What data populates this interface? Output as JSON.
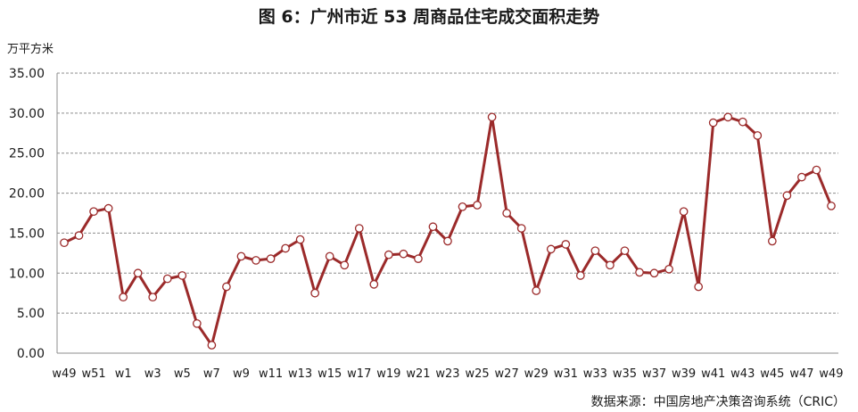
{
  "title": "图 6：广州市近 53 周商品住宅成交面积走势",
  "unit_label": "万平方米",
  "source": "数据来源：中国房地产决策咨询系统（CRIC）",
  "chart_data": {
    "type": "line",
    "ylim": [
      0,
      35
    ],
    "yticks": [
      "0.00",
      "5.00",
      "10.00",
      "15.00",
      "20.00",
      "25.00",
      "30.00",
      "35.00"
    ],
    "grid": true,
    "categories": [
      "w49",
      "w50",
      "w51",
      "w52",
      "w1",
      "w2",
      "w3",
      "w4",
      "w5",
      "w6",
      "w7",
      "w8",
      "w9",
      "w10",
      "w11",
      "w12",
      "w13",
      "w14",
      "w15",
      "w16",
      "w17",
      "w18",
      "w19",
      "w20",
      "w21",
      "w22",
      "w23",
      "w24",
      "w25",
      "w26",
      "w27",
      "w28",
      "w29",
      "w30",
      "w31",
      "w32",
      "w33",
      "w34",
      "w35",
      "w36",
      "w37",
      "w38",
      "w39",
      "w40",
      "w41",
      "w42",
      "w43",
      "w44",
      "w45",
      "w46",
      "w47",
      "w48",
      "w49"
    ],
    "xtick_labels": [
      "w49",
      "w51",
      "w1",
      "w3",
      "w5",
      "w7",
      "w9",
      "w11",
      "w13",
      "w15",
      "w17",
      "w19",
      "w21",
      "w23",
      "w25",
      "w27",
      "w29",
      "w31",
      "w33",
      "w35",
      "w37",
      "w39",
      "w41",
      "w43",
      "w45",
      "w47",
      "w49"
    ],
    "series": [
      {
        "color": "#9b2a2a",
        "values": [
          13.8,
          14.7,
          17.7,
          18.1,
          7.0,
          10.0,
          7.0,
          9.3,
          9.7,
          3.7,
          1.0,
          8.3,
          12.1,
          11.6,
          11.8,
          13.1,
          14.2,
          7.5,
          12.1,
          11.0,
          15.6,
          8.6,
          12.3,
          12.4,
          11.8,
          15.8,
          14.0,
          18.3,
          18.5,
          29.5,
          17.5,
          15.6,
          7.8,
          13.0,
          13.6,
          9.7,
          12.8,
          11.0,
          12.8,
          10.1,
          10.0,
          10.5,
          17.7,
          8.3,
          28.8,
          29.5,
          28.9,
          27.2,
          14.0,
          19.7,
          22.0,
          22.9,
          18.4
        ]
      }
    ]
  }
}
